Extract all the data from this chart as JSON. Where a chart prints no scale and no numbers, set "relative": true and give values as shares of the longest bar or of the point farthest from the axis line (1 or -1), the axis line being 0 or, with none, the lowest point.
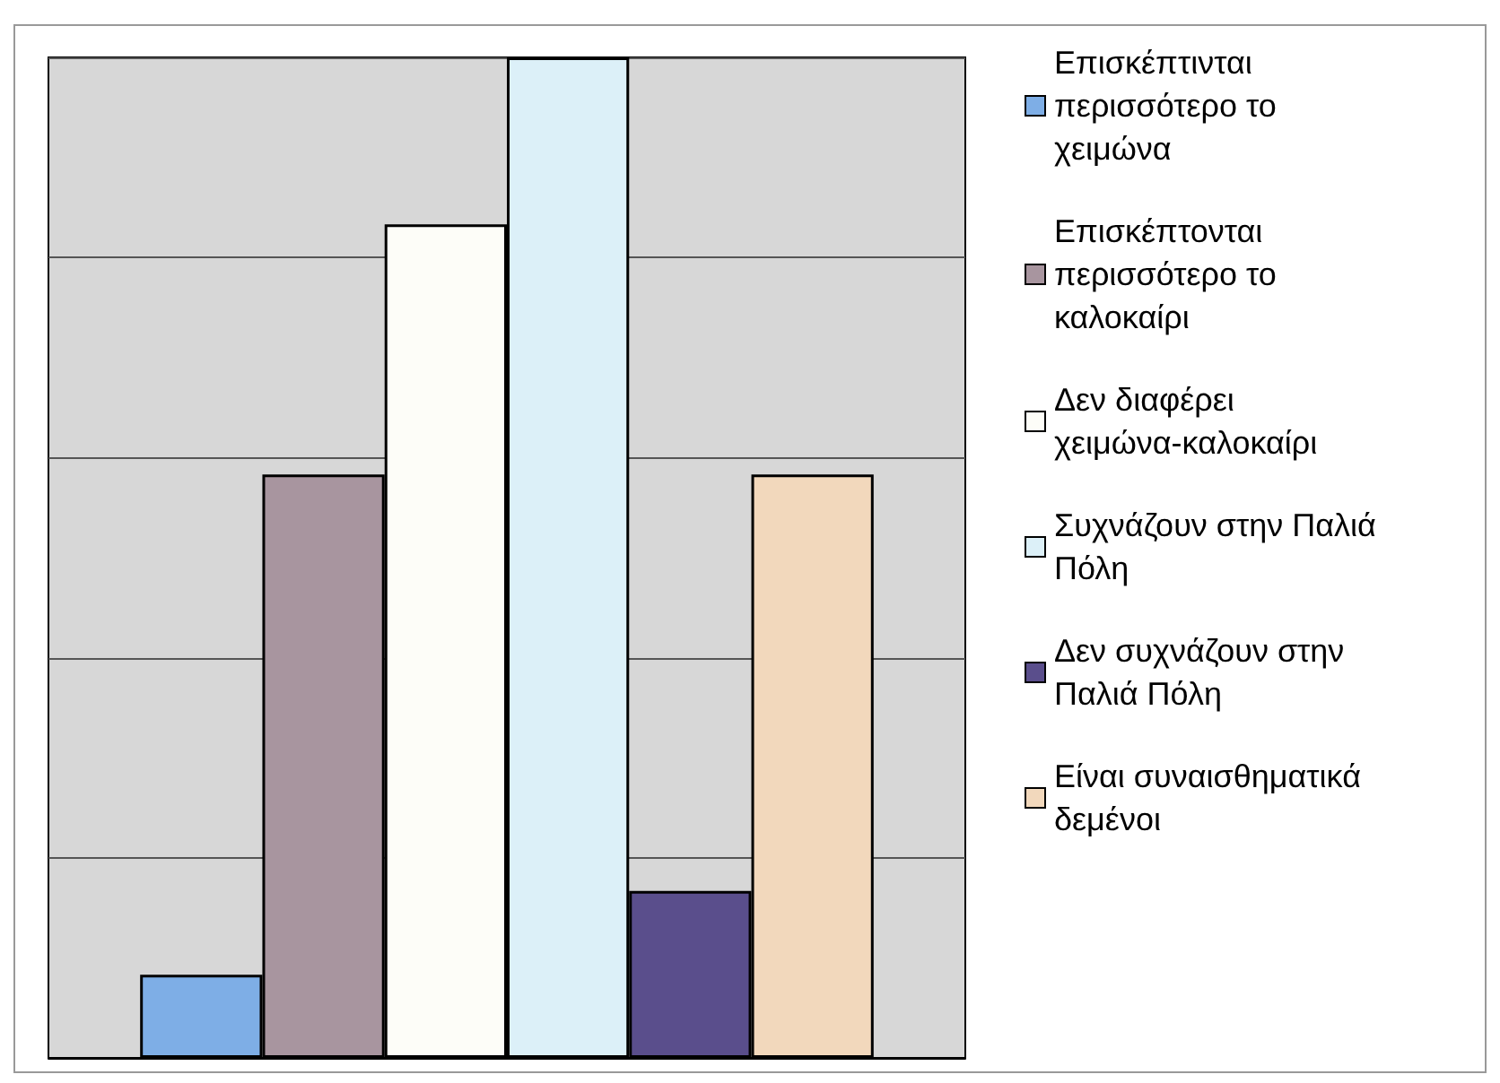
{
  "chart_data": {
    "type": "bar",
    "relative": true,
    "categories": [
      null
    ],
    "grid": "y",
    "legend": "right",
    "series": [
      {
        "name": "Επισκέπτινται περισσότερο το χειμώνα",
        "color": "#7eaee6",
        "values": [
          0.083
        ]
      },
      {
        "name": "Επισκέπτονται περισσότερο το καλοκαίρι",
        "color": "#a8959f",
        "values": [
          0.583
        ]
      },
      {
        "name": "Δεν διαφέρει χειμώνα-καλοκαίρι",
        "color": "#fdfdf8",
        "values": [
          0.833
        ]
      },
      {
        "name": "Συχνάζουν στην Παλιά Πόλη",
        "color": "#dcf0f8",
        "values": [
          1
        ]
      },
      {
        "name": "Δεν συχνάζουν στην Παλιά Πόλη",
        "color": "#5a4e8c",
        "values": [
          0.167
        ]
      },
      {
        "name": "Είναι συναισθηματικά δεμένοι",
        "color": "#f2d8bc",
        "values": [
          0.583
        ]
      }
    ]
  }
}
